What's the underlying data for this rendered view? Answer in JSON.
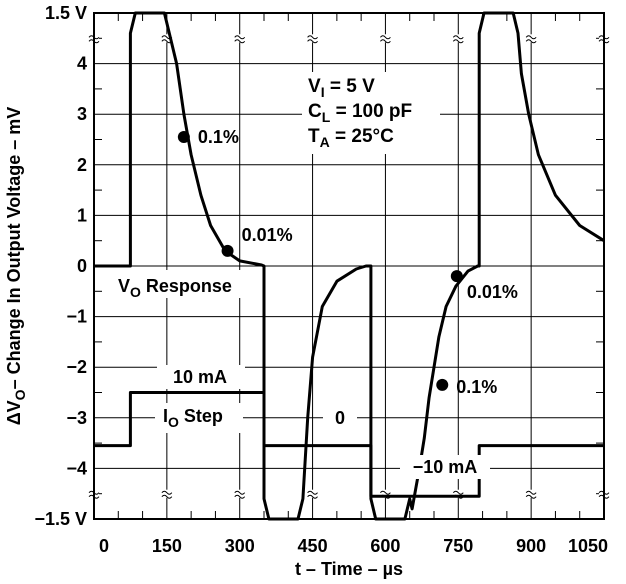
{
  "chart_data": {
    "type": "line",
    "xlabel_main": "t – Time – ",
    "xlabel_unit": "µs",
    "ylabel_main": "ΔV",
    "ylabel_sub": "O",
    "ylabel_rest": "– Change In Output Voltage – mV",
    "xlim": [
      0,
      1050
    ],
    "ylim": [
      -5,
      5
    ],
    "x_ticks": [
      {
        "value": 0,
        "label": "0"
      },
      {
        "value": 150,
        "label": "150"
      },
      {
        "value": 300,
        "label": "300"
      },
      {
        "value": 450,
        "label": "450"
      },
      {
        "value": 600,
        "label": "600"
      },
      {
        "value": 750,
        "label": "750"
      },
      {
        "value": 900,
        "label": "900"
      },
      {
        "value": 1050,
        "label": "1050"
      }
    ],
    "y_ticks": [
      {
        "value": 5,
        "label": "1.5 V"
      },
      {
        "value": 4,
        "label": "4"
      },
      {
        "value": 3,
        "label": "3"
      },
      {
        "value": 2,
        "label": "2"
      },
      {
        "value": 1,
        "label": "1"
      },
      {
        "value": 0,
        "label": "0"
      },
      {
        "value": -1,
        "label": "−1"
      },
      {
        "value": -2,
        "label": "−2"
      },
      {
        "value": -3,
        "label": "−3"
      },
      {
        "value": -4,
        "label": "−4"
      },
      {
        "value": -5,
        "label": "−1.5 V"
      }
    ],
    "grid": true,
    "conditions": [
      {
        "main": "V",
        "sub": "I",
        "rest": " = 5 V"
      },
      {
        "main": "C",
        "sub": "L",
        "rest": " = 100 pF"
      },
      {
        "main": "T",
        "sub": "A",
        "rest": " = 25°C"
      }
    ],
    "series": [
      {
        "name_main": "V",
        "name_sub": "O",
        "name_rest": " Response",
        "points": [
          [
            0,
            0
          ],
          [
            75,
            0
          ],
          [
            75,
            4.6
          ],
          [
            85,
            5.0
          ],
          [
            145,
            5.0
          ],
          [
            155,
            4.6
          ],
          [
            170,
            4.0
          ],
          [
            185,
            3.0
          ],
          [
            200,
            2.2
          ],
          [
            220,
            1.4
          ],
          [
            240,
            0.8
          ],
          [
            270,
            0.3
          ],
          [
            300,
            0.1
          ],
          [
            345,
            0.02
          ],
          [
            350,
            0
          ],
          [
            350,
            -4.6
          ],
          [
            360,
            -5.0
          ],
          [
            420,
            -5.0
          ],
          [
            430,
            -4.6
          ],
          [
            440,
            -3.0
          ],
          [
            450,
            -1.8
          ],
          [
            470,
            -0.8
          ],
          [
            500,
            -0.3
          ],
          [
            540,
            -0.06
          ],
          [
            560,
            0
          ],
          [
            570,
            0
          ],
          [
            570,
            -4.6
          ],
          [
            580,
            -5.0
          ],
          [
            640,
            -5.0
          ],
          [
            650,
            -4.6
          ],
          [
            655,
            -4.8
          ],
          [
            670,
            -4.0
          ],
          [
            680,
            -3.4
          ],
          [
            690,
            -2.6
          ],
          [
            700,
            -2.0
          ],
          [
            710,
            -1.4
          ],
          [
            725,
            -0.8
          ],
          [
            745,
            -0.4
          ],
          [
            770,
            -0.1
          ],
          [
            790,
            0
          ],
          [
            793,
            0
          ],
          [
            793,
            4.6
          ],
          [
            803,
            5.0
          ],
          [
            863,
            5.0
          ],
          [
            873,
            4.6
          ],
          [
            880,
            3.8
          ],
          [
            895,
            3.0
          ],
          [
            915,
            2.2
          ],
          [
            950,
            1.4
          ],
          [
            1000,
            0.8
          ],
          [
            1050,
            0.5
          ]
        ]
      },
      {
        "name_main": "I",
        "name_sub": "O",
        "name_rest": " Step",
        "points": [
          [
            0,
            -3.55
          ],
          [
            75,
            -3.55
          ],
          [
            75,
            -2.5
          ],
          [
            350,
            -2.5
          ],
          [
            350,
            -3.55
          ],
          [
            570,
            -3.55
          ],
          [
            570,
            -4.55
          ],
          [
            793,
            -4.55
          ],
          [
            793,
            -3.55
          ],
          [
            1050,
            -3.55
          ]
        ]
      }
    ],
    "markers": [
      {
        "x": 185,
        "y": 2.55,
        "label": "0.1%"
      },
      {
        "x": 275,
        "y": 0.3,
        "label": "0.01%"
      },
      {
        "x": 717,
        "y": -2.35,
        "label": "0.1%"
      },
      {
        "x": 747,
        "y": -0.2,
        "label": "0.01%"
      }
    ],
    "annotations": [
      {
        "text": "10 mA"
      },
      {
        "text": "0"
      },
      {
        "text": "−10 mA"
      }
    ]
  }
}
